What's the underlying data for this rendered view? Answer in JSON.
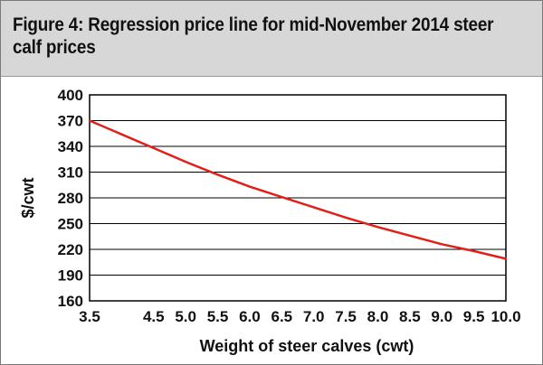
{
  "figure": {
    "title": "Figure 4: Regression price line for mid-November 2014 steer calf prices"
  },
  "colors": {
    "title_background": "#d7d7d7",
    "line": "#e0201b",
    "grid": "#000000"
  },
  "chart_data": {
    "type": "line",
    "title": "Figure 4: Regression price line for mid-November 2014 steer calf prices",
    "xlabel": "Weight of steer calves (cwt)",
    "ylabel": "$/cwt",
    "xlim": [
      3.5,
      10.0
    ],
    "ylim": [
      160,
      400
    ],
    "x_tick_labels": [
      "3.5",
      "4.5",
      "5.0",
      "5.5",
      "6.0",
      "6.5",
      "7.0",
      "7.5",
      "8.0",
      "8.5",
      "9.0",
      "9.5",
      "10.0"
    ],
    "y_tick_labels": [
      "400",
      "370",
      "340",
      "310",
      "280",
      "250",
      "220",
      "190",
      "160"
    ],
    "grid": "horizontal",
    "legend": "none",
    "series": [
      {
        "x": [
          3.5,
          4.0,
          4.5,
          5.0,
          5.5,
          6.0,
          6.5,
          7.0,
          7.5,
          8.0,
          8.5,
          9.0,
          9.5,
          10.0
        ],
        "y": [
          370,
          354,
          338,
          322,
          307,
          293,
          281,
          269,
          257,
          246,
          236,
          226,
          218,
          209
        ]
      }
    ]
  }
}
